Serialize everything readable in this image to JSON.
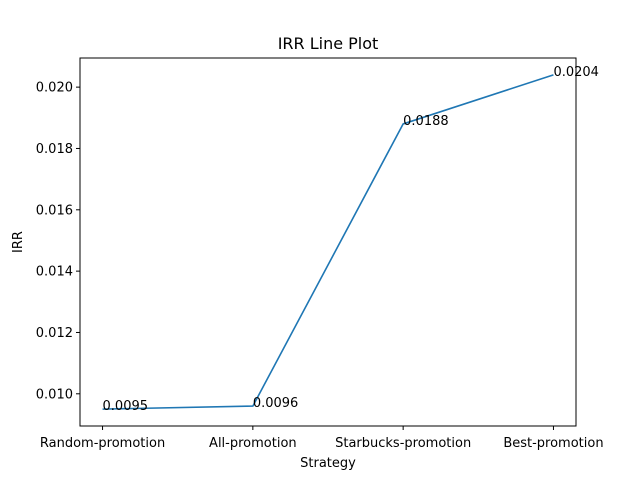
{
  "chart_data": {
    "type": "line",
    "title": "IRR Line Plot",
    "xlabel": "Strategy",
    "ylabel": "IRR",
    "categories": [
      "Random-promotion",
      "All-promotion",
      "Starbucks-promotion",
      "Best-promotion"
    ],
    "series": [
      {
        "values": [
          0.0095,
          0.0096,
          0.0188,
          0.0204
        ],
        "color": "#1f77b4"
      }
    ],
    "data_labels": [
      "0.0095",
      "0.0096",
      "0.0188",
      "0.0204"
    ],
    "yticks": [
      0.01,
      0.012,
      0.014,
      0.016,
      0.018,
      0.02
    ],
    "ytick_labels": [
      "0.010",
      "0.012",
      "0.014",
      "0.016",
      "0.018",
      "0.020"
    ],
    "ylim": [
      0.00895,
      0.02095
    ],
    "grid": false,
    "legend": "none"
  }
}
